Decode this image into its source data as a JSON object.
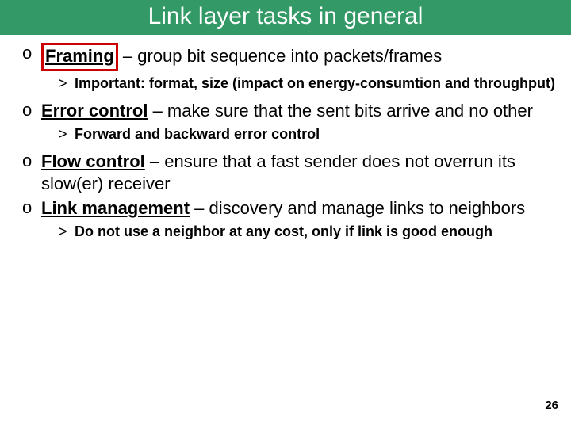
{
  "header": {
    "title": "Link layer tasks in general",
    "bg_color": "#339966",
    "title_color": "#ffffff",
    "title_fontsize": 30
  },
  "items": [
    {
      "term": "Framing",
      "rest": " – group bit sequence into packets/frames",
      "box_color": "#cc0000",
      "boxed": true,
      "sub": [
        "Important: format, size (impact on energy-consumtion and throughput)"
      ]
    },
    {
      "term": "Error control",
      "rest": " – make sure that the sent bits arrive and no other",
      "boxed": false,
      "sub": [
        "Forward and backward error control"
      ]
    },
    {
      "term": "Flow control",
      "rest": " – ensure that a fast sender does not overrun its slow(er) receiver",
      "boxed": false,
      "sub": []
    },
    {
      "term": "Link management",
      "rest": " – discovery and manage links to neighbors",
      "boxed": false,
      "sub": [
        "Do not use a neighbor at any cost, only if link is good enough"
      ]
    }
  ],
  "page_number": "26",
  "body_fontsize": 22,
  "sub_fontsize": 18
}
